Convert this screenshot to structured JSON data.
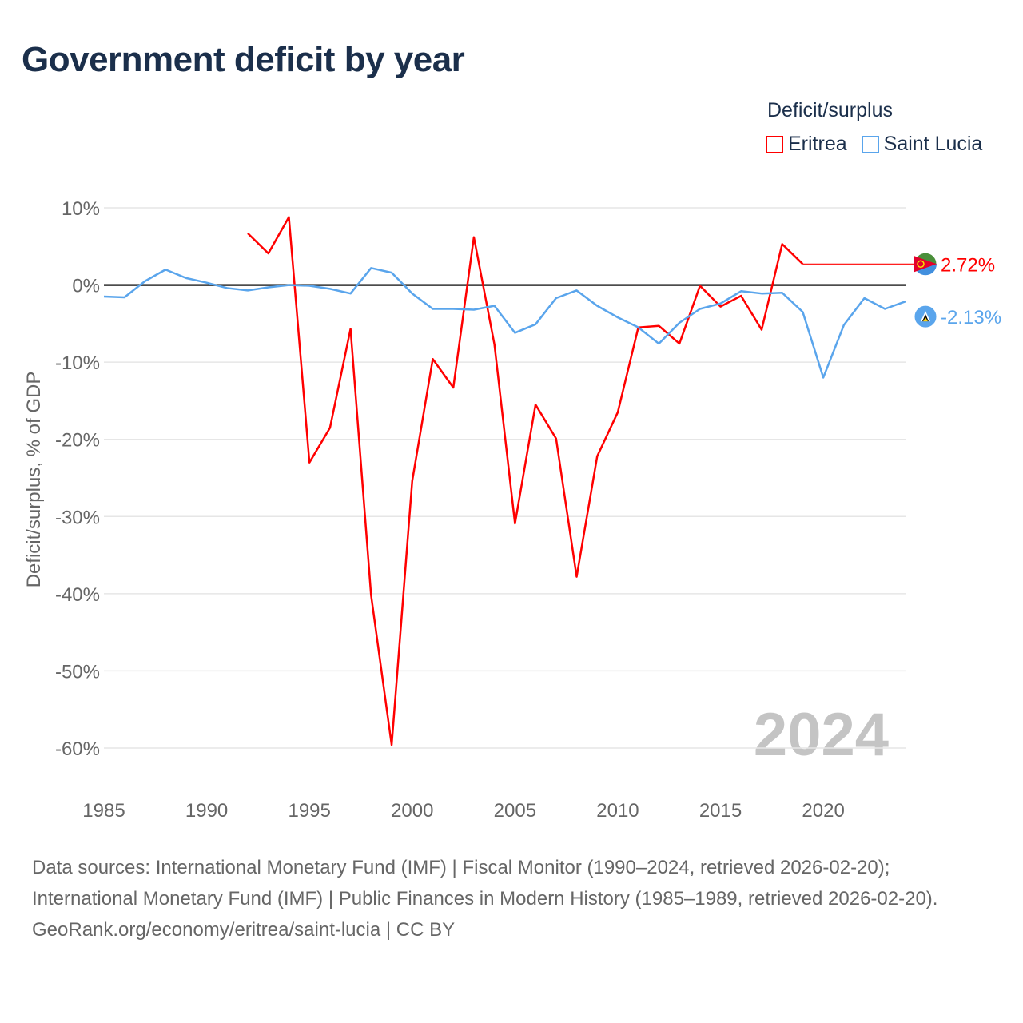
{
  "title": "Government deficit by year",
  "legend": {
    "title": "Deficit/surplus",
    "items": [
      {
        "name": "Eritrea",
        "color": "#ff0000"
      },
      {
        "name": "Saint Lucia",
        "color": "#5aa5ec"
      }
    ]
  },
  "watermark_year": "2024",
  "footer": {
    "sources": "Data sources: International Monetary Fund (IMF) | Fiscal Monitor (1990–2024, retrieved 2026-02-20); International Monetary Fund (IMF) | Public Finances in Modern History (1985–1989, retrieved 2026-02-20).",
    "credit": "GeoRank.org/economy/eritrea/saint-lucia | CC BY"
  },
  "chart_data": {
    "type": "line",
    "title": "Government deficit by year",
    "xlabel": "",
    "ylabel": "Deficit/surplus, % of GDP",
    "xlim": [
      1985,
      2024
    ],
    "ylim": [
      -60,
      10
    ],
    "x_ticks": [
      "1985",
      "1990",
      "1995",
      "2000",
      "2005",
      "2010",
      "2015",
      "2020"
    ],
    "y_ticks": [
      "10%",
      "0%",
      "-10%",
      "-20%",
      "-30%",
      "-40%",
      "-50%",
      "-60%"
    ],
    "y_tick_values": [
      10,
      0,
      -10,
      -20,
      -30,
      -40,
      -50,
      -60
    ],
    "grid": true,
    "legend_position": "top-right",
    "series": [
      {
        "name": "Eritrea",
        "color": "#ff0000",
        "end_label": "2.72%",
        "x": [
          1992,
          1993,
          1994,
          1995,
          1996,
          1997,
          1998,
          1999,
          2000,
          2001,
          2002,
          2003,
          2004,
          2005,
          2006,
          2007,
          2008,
          2009,
          2010,
          2011,
          2012,
          2013,
          2014,
          2015,
          2016,
          2017,
          2018,
          2019
        ],
        "values": [
          6.7,
          4.1,
          8.8,
          -23.0,
          -18.5,
          -5.7,
          -40.2,
          -59.6,
          -25.4,
          -9.6,
          -13.3,
          6.2,
          -7.7,
          -30.9,
          -15.5,
          -19.9,
          -37.8,
          -22.2,
          -16.5,
          -5.5,
          -5.3,
          -7.6,
          -0.1,
          -2.8,
          -1.4,
          -5.8,
          5.3,
          2.72
        ],
        "carried_forward_to": 2024
      },
      {
        "name": "Saint Lucia",
        "color": "#5aa5ec",
        "end_label": "-2.13%",
        "x": [
          1985,
          1986,
          1987,
          1988,
          1989,
          1990,
          1991,
          1992,
          1993,
          1994,
          1995,
          1996,
          1997,
          1998,
          1999,
          2000,
          2001,
          2002,
          2003,
          2004,
          2005,
          2006,
          2007,
          2008,
          2009,
          2010,
          2011,
          2012,
          2013,
          2014,
          2015,
          2016,
          2017,
          2018,
          2019,
          2020,
          2021,
          2022,
          2023,
          2024
        ],
        "values": [
          -1.5,
          -1.6,
          0.5,
          2.0,
          0.9,
          0.3,
          -0.4,
          -0.7,
          -0.3,
          0,
          -0.1,
          -0.5,
          -1.1,
          2.2,
          1.6,
          -1.1,
          -3.1,
          -3.1,
          -3.2,
          -2.7,
          -6.2,
          -5.1,
          -1.7,
          -0.7,
          -2.7,
          -4.2,
          -5.5,
          -7.6,
          -4.9,
          -3.1,
          -2.4,
          -0.8,
          -1.1,
          -1.0,
          -3.5,
          -12.0,
          -5.2,
          -1.7,
          -3.1,
          -2.13
        ]
      }
    ]
  }
}
